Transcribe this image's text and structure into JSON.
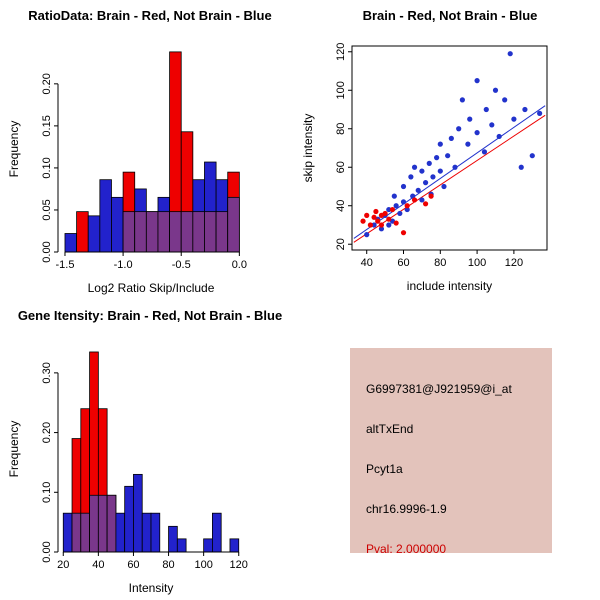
{
  "window": {
    "background": "#ffffff"
  },
  "chart_data": [
    {
      "id": "ratioHist",
      "type": "bar",
      "title": "RatioData: Brain - Red, Not Brain - Blue",
      "xlabel": "Log2 Ratio Skip/Include",
      "ylabel": "Frequency",
      "bin_start": -1.5,
      "bin_width": 0.1,
      "series": [
        {
          "name": "Brain",
          "color": "#ee0000",
          "values": [
            0,
            0.048,
            0,
            0,
            0,
            0.095,
            0.048,
            0.048,
            0.048,
            0.238,
            0.143,
            0.048,
            0.048,
            0.048,
            0.095
          ]
        },
        {
          "name": "Not Brain",
          "color": "#2222cc",
          "values": [
            0.022,
            0,
            0.043,
            0.086,
            0.065,
            0.048,
            0.075,
            0.048,
            0.065,
            0.048,
            0.048,
            0.086,
            0.107,
            0.086,
            0.065
          ]
        }
      ],
      "overlap_color": "#7a378b",
      "xlim": [
        -1.56,
        0.04
      ],
      "ylim": [
        0,
        0.245
      ],
      "xticks": [
        -1.5,
        -1.0,
        -0.5,
        0.0
      ],
      "xtick_labels": [
        "-1.5",
        "-1.0",
        "-0.5",
        "0.0"
      ],
      "yticks": [
        0,
        0.05,
        0.1,
        0.15,
        0.2
      ],
      "ytick_labels": [
        "0.00",
        "0.05",
        "0.10",
        "0.15",
        "0.20"
      ],
      "grid": false,
      "legend": "in title"
    },
    {
      "id": "scatter",
      "type": "scatter",
      "title": "Brain - Red, Not Brain - Blue",
      "xlabel": "include intensity",
      "ylabel": "skip intensity",
      "series": [
        {
          "name": "Not Brain",
          "color": "#2233cc",
          "points": [
            [
              40,
              25
            ],
            [
              44,
              30
            ],
            [
              46,
              33
            ],
            [
              48,
              28
            ],
            [
              50,
              35
            ],
            [
              52,
              30
            ],
            [
              52,
              38
            ],
            [
              54,
              32
            ],
            [
              55,
              45
            ],
            [
              56,
              40
            ],
            [
              58,
              36
            ],
            [
              60,
              50
            ],
            [
              60,
              42
            ],
            [
              62,
              38
            ],
            [
              64,
              55
            ],
            [
              65,
              45
            ],
            [
              66,
              60
            ],
            [
              68,
              48
            ],
            [
              70,
              43
            ],
            [
              70,
              58
            ],
            [
              72,
              52
            ],
            [
              74,
              62
            ],
            [
              75,
              46
            ],
            [
              76,
              55
            ],
            [
              78,
              65
            ],
            [
              80,
              58
            ],
            [
              80,
              72
            ],
            [
              82,
              50
            ],
            [
              84,
              66
            ],
            [
              86,
              75
            ],
            [
              88,
              60
            ],
            [
              90,
              80
            ],
            [
              92,
              95
            ],
            [
              95,
              72
            ],
            [
              96,
              85
            ],
            [
              100,
              78
            ],
            [
              100,
              105
            ],
            [
              104,
              68
            ],
            [
              105,
              90
            ],
            [
              108,
              82
            ],
            [
              110,
              100
            ],
            [
              112,
              76
            ],
            [
              115,
              95
            ],
            [
              118,
              119
            ],
            [
              120,
              85
            ],
            [
              124,
              60
            ],
            [
              126,
              90
            ],
            [
              130,
              66
            ],
            [
              134,
              88
            ]
          ]
        },
        {
          "name": "Brain",
          "color": "#ee0000",
          "points": [
            [
              38,
              32
            ],
            [
              40,
              35
            ],
            [
              42,
              30
            ],
            [
              44,
              34
            ],
            [
              45,
              37
            ],
            [
              46,
              32
            ],
            [
              48,
              35
            ],
            [
              48,
              30
            ],
            [
              50,
              36
            ],
            [
              52,
              33
            ],
            [
              54,
              38
            ],
            [
              56,
              31
            ],
            [
              60,
              26
            ],
            [
              62,
              40
            ],
            [
              66,
              43
            ],
            [
              72,
              41
            ],
            [
              75,
              45
            ]
          ]
        }
      ],
      "lines": [
        {
          "name": "fit-brain",
          "color": "#ee0000",
          "from": [
            33,
            21
          ],
          "to": [
            137,
            87
          ]
        },
        {
          "name": "fit-notbrain",
          "color": "#2233cc",
          "from": [
            33,
            23
          ],
          "to": [
            137,
            92
          ]
        }
      ],
      "xlim": [
        32,
        138
      ],
      "ylim": [
        17,
        123
      ],
      "xticks": [
        40,
        60,
        80,
        100,
        120
      ],
      "xtick_labels": [
        "40",
        "60",
        "80",
        "100",
        "120"
      ],
      "yticks": [
        20,
        40,
        60,
        80,
        100,
        120
      ],
      "ytick_labels": [
        "20",
        "40",
        "60",
        "80",
        "100",
        "120"
      ],
      "grid": false,
      "box": true
    },
    {
      "id": "geneHist",
      "type": "bar",
      "title": "Gene Itensity: Brain - Red, Not Brain - Blue",
      "xlabel": "Intensity",
      "ylabel": "Frequency",
      "bin_start": 20,
      "bin_width": 5,
      "series": [
        {
          "name": "Brain",
          "color": "#ee0000",
          "values": [
            0,
            0.19,
            0.24,
            0.335,
            0.24,
            0.095,
            0,
            0,
            0,
            0,
            0,
            0,
            0,
            0,
            0,
            0,
            0,
            0,
            0,
            0
          ]
        },
        {
          "name": "Not Brain",
          "color": "#2222cc",
          "values": [
            0.065,
            0.065,
            0.065,
            0.095,
            0.095,
            0.095,
            0.065,
            0.11,
            0.13,
            0.065,
            0.065,
            0,
            0.043,
            0.022,
            0,
            0,
            0.022,
            0.065,
            0,
            0.022
          ]
        }
      ],
      "overlap_color": "#7a378b",
      "xlim": [
        17,
        123
      ],
      "ylim": [
        0,
        0.345
      ],
      "xticks": [
        20,
        40,
        60,
        80,
        100,
        120
      ],
      "xtick_labels": [
        "20",
        "40",
        "60",
        "80",
        "100",
        "120"
      ],
      "yticks": [
        0,
        0.1,
        0.2,
        0.3
      ],
      "ytick_labels": [
        "0.00",
        "0.10",
        "0.20",
        "0.30"
      ],
      "grid": false,
      "legend": "in title"
    }
  ],
  "info_panel": {
    "background": "#e3c3bb",
    "lines": [
      {
        "text": "G6997381@J921959@i_at",
        "color": "#000000"
      },
      {
        "text": "altTxEnd",
        "color": "#000000"
      },
      {
        "text": "Pcyt1a",
        "color": "#000000"
      },
      {
        "text": "chr16.9996-1.9",
        "color": "#000000"
      },
      {
        "text": "Pval: 2.000000",
        "color": "#cc0000"
      }
    ]
  }
}
